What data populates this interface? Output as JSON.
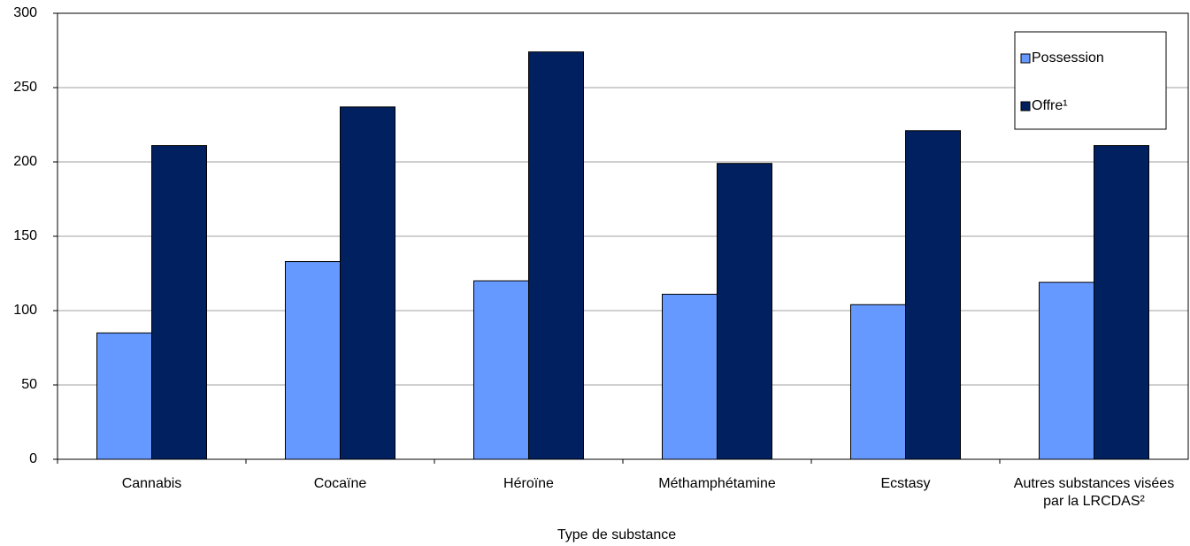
{
  "chart_data": {
    "type": "bar",
    "x_label": "Type de substance",
    "categories": [
      "Cannabis",
      "Cocaïne",
      "Héroïne",
      "Méthamphétamine",
      "Ecstasy",
      "Autres substances visées par la LRCDAS²"
    ],
    "series": [
      {
        "name": "Possession",
        "color": "#6699ff",
        "values": [
          85,
          133,
          120,
          111,
          104,
          119
        ]
      },
      {
        "name": "Offre¹",
        "color": "#002060",
        "values": [
          211,
          237,
          274,
          199,
          221,
          211
        ]
      }
    ],
    "ylim": [
      0,
      300
    ],
    "yticks": [
      0,
      50,
      100,
      150,
      200,
      250,
      300
    ],
    "grid": true,
    "legend": "top-right"
  }
}
